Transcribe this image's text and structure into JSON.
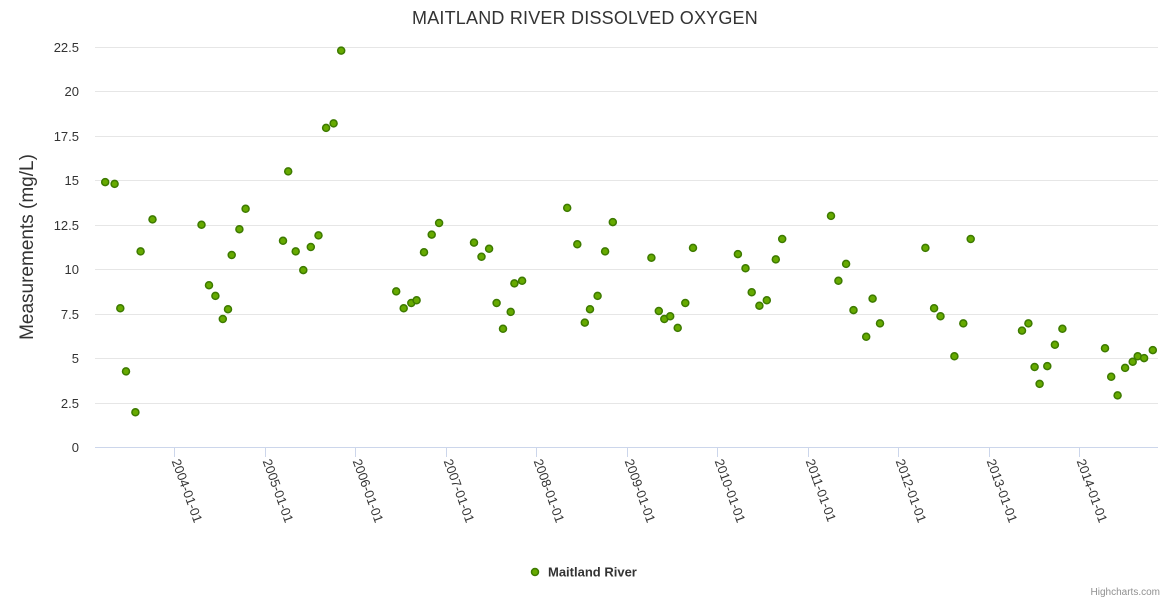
{
  "chart_data": {
    "type": "scatter",
    "title": "MAITLAND RIVER DISSOLVED OXYGEN",
    "ylabel": "Measurements (mg/L)",
    "xlabel": "",
    "ylim": [
      0,
      22.5
    ],
    "yticks": [
      "0",
      "2.5",
      "5",
      "7.5",
      "10",
      "12.5",
      "15",
      "17.5",
      "20",
      "22.5"
    ],
    "xlim": [
      "2003-02-15",
      "2014-11-15"
    ],
    "xticks": [
      "2004-01-01",
      "2005-01-01",
      "2006-01-01",
      "2007-01-01",
      "2008-01-01",
      "2009-01-01",
      "2010-01-01",
      "2011-01-01",
      "2012-01-01",
      "2013-01-01",
      "2014-01-01"
    ],
    "grid": true,
    "legend_position": "bottom-center",
    "colors": {
      "marker_fill": "#66aa00",
      "marker_stroke": "#3d7a00"
    },
    "series": [
      {
        "name": "Maitland River",
        "points": [
          [
            "2003-03-28",
            14.9
          ],
          [
            "2003-05-05",
            14.8
          ],
          [
            "2003-05-28",
            7.8
          ],
          [
            "2003-06-20",
            4.25
          ],
          [
            "2003-07-28",
            1.95
          ],
          [
            "2003-08-18",
            11.0
          ],
          [
            "2003-10-05",
            12.8
          ],
          [
            "2004-04-20",
            12.5
          ],
          [
            "2004-05-20",
            9.1
          ],
          [
            "2004-06-15",
            8.5
          ],
          [
            "2004-07-15",
            7.2
          ],
          [
            "2004-08-05",
            7.75
          ],
          [
            "2004-08-20",
            10.8
          ],
          [
            "2004-09-20",
            12.25
          ],
          [
            "2004-10-15",
            13.4
          ],
          [
            "2005-03-15",
            11.6
          ],
          [
            "2005-04-05",
            15.5
          ],
          [
            "2005-05-05",
            11.0
          ],
          [
            "2005-06-05",
            9.95
          ],
          [
            "2005-07-05",
            11.25
          ],
          [
            "2005-08-05",
            11.9
          ],
          [
            "2005-09-05",
            17.95
          ],
          [
            "2005-10-05",
            18.2
          ],
          [
            "2005-11-05",
            22.3
          ],
          [
            "2006-06-15",
            8.75
          ],
          [
            "2006-07-15",
            7.8
          ],
          [
            "2006-08-15",
            8.1
          ],
          [
            "2006-09-05",
            8.25
          ],
          [
            "2006-10-05",
            10.95
          ],
          [
            "2006-11-05",
            11.95
          ],
          [
            "2006-12-05",
            12.6
          ],
          [
            "2007-04-25",
            11.5
          ],
          [
            "2007-05-25",
            10.7
          ],
          [
            "2007-06-25",
            11.15
          ],
          [
            "2007-07-25",
            8.1
          ],
          [
            "2007-08-20",
            6.65
          ],
          [
            "2007-09-20",
            7.6
          ],
          [
            "2007-10-05",
            9.2
          ],
          [
            "2007-11-05",
            9.35
          ],
          [
            "2008-05-05",
            13.45
          ],
          [
            "2008-06-15",
            11.4
          ],
          [
            "2008-07-15",
            7.0
          ],
          [
            "2008-08-05",
            7.75
          ],
          [
            "2008-09-05",
            8.5
          ],
          [
            "2008-10-05",
            11.0
          ],
          [
            "2008-11-05",
            12.65
          ],
          [
            "2009-04-10",
            10.65
          ],
          [
            "2009-05-10",
            7.65
          ],
          [
            "2009-06-01",
            7.2
          ],
          [
            "2009-06-25",
            7.35
          ],
          [
            "2009-07-25",
            6.7
          ],
          [
            "2009-08-25",
            8.1
          ],
          [
            "2009-09-25",
            11.2
          ],
          [
            "2010-03-25",
            10.85
          ],
          [
            "2010-04-25",
            10.05
          ],
          [
            "2010-05-20",
            8.7
          ],
          [
            "2010-06-20",
            7.95
          ],
          [
            "2010-07-20",
            8.25
          ],
          [
            "2010-08-25",
            10.55
          ],
          [
            "2010-09-20",
            11.7
          ],
          [
            "2011-04-05",
            13.0
          ],
          [
            "2011-05-05",
            9.35
          ],
          [
            "2011-06-05",
            10.3
          ],
          [
            "2011-07-05",
            7.7
          ],
          [
            "2011-08-25",
            6.2
          ],
          [
            "2011-09-20",
            8.35
          ],
          [
            "2011-10-20",
            6.95
          ],
          [
            "2012-04-20",
            11.2
          ],
          [
            "2012-05-25",
            7.8
          ],
          [
            "2012-06-20",
            7.35
          ],
          [
            "2012-08-15",
            5.1
          ],
          [
            "2012-09-20",
            6.95
          ],
          [
            "2012-10-20",
            11.7
          ],
          [
            "2013-05-15",
            6.55
          ],
          [
            "2013-06-10",
            6.95
          ],
          [
            "2013-07-05",
            4.5
          ],
          [
            "2013-07-25",
            3.55
          ],
          [
            "2013-08-25",
            4.55
          ],
          [
            "2013-09-25",
            5.75
          ],
          [
            "2013-10-25",
            6.65
          ],
          [
            "2014-04-15",
            5.55
          ],
          [
            "2014-05-10",
            3.95
          ],
          [
            "2014-06-05",
            2.9
          ],
          [
            "2014-07-05",
            4.45
          ],
          [
            "2014-08-05",
            4.8
          ],
          [
            "2014-08-25",
            5.1
          ],
          [
            "2014-09-20",
            5.0
          ],
          [
            "2014-10-25",
            5.45
          ]
        ]
      }
    ]
  },
  "credits": "Highcharts.com"
}
